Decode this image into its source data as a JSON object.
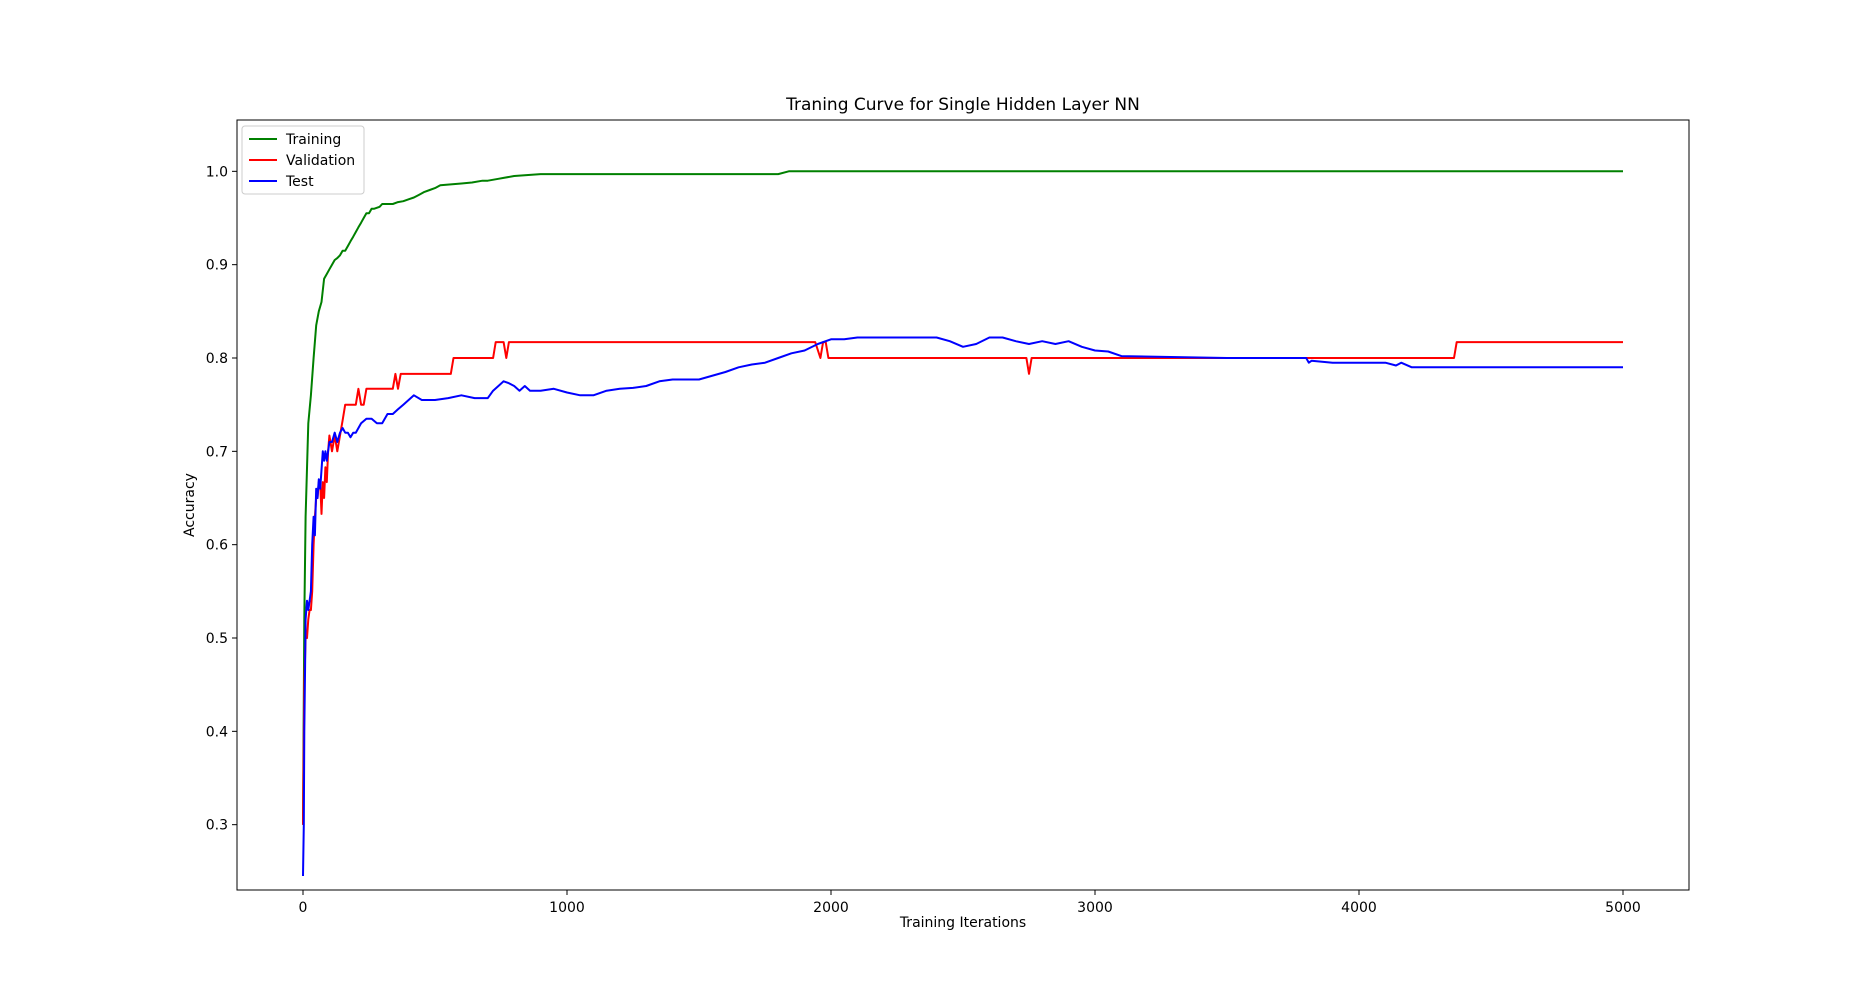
{
  "chart_data": {
    "type": "line",
    "title": "Traning Curve for Single Hidden Layer NN",
    "xlabel": "Training Iterations",
    "ylabel": "Accuracy",
    "xlim": [
      -250,
      5250
    ],
    "ylim": [
      0.23,
      1.055
    ],
    "xticks": [
      0,
      1000,
      2000,
      3000,
      4000,
      5000
    ],
    "xtick_labels": [
      "0",
      "1000",
      "2000",
      "3000",
      "4000",
      "5000"
    ],
    "yticks": [
      0.3,
      0.4,
      0.5,
      0.6,
      0.7,
      0.8,
      0.9,
      1.0
    ],
    "ytick_labels": [
      "0.3",
      "0.4",
      "0.5",
      "0.6",
      "0.7",
      "0.8",
      "0.9",
      "1.0"
    ],
    "grid": false,
    "legend_position": "upper-left",
    "series": [
      {
        "name": "Training",
        "color": "#008000",
        "x": [
          0,
          5,
          10,
          20,
          30,
          40,
          50,
          60,
          70,
          80,
          90,
          100,
          110,
          120,
          130,
          140,
          150,
          160,
          170,
          180,
          190,
          200,
          210,
          220,
          230,
          240,
          250,
          260,
          270,
          290,
          300,
          320,
          340,
          360,
          380,
          400,
          420,
          440,
          460,
          480,
          500,
          520,
          560,
          600,
          640,
          680,
          700,
          740,
          760,
          800,
          900,
          1000,
          1200,
          1400,
          1600,
          1800,
          1840,
          1900,
          2100,
          2500,
          3000,
          3500,
          4000,
          4500,
          5000
        ],
        "y": [
          0.3,
          0.52,
          0.63,
          0.73,
          0.76,
          0.8,
          0.835,
          0.85,
          0.86,
          0.885,
          0.89,
          0.895,
          0.9,
          0.905,
          0.907,
          0.91,
          0.915,
          0.915,
          0.92,
          0.925,
          0.93,
          0.935,
          0.94,
          0.945,
          0.95,
          0.955,
          0.955,
          0.96,
          0.96,
          0.962,
          0.965,
          0.965,
          0.965,
          0.967,
          0.968,
          0.97,
          0.972,
          0.975,
          0.978,
          0.98,
          0.982,
          0.985,
          0.986,
          0.987,
          0.988,
          0.99,
          0.99,
          0.992,
          0.993,
          0.995,
          0.997,
          0.997,
          0.997,
          0.997,
          0.997,
          0.997,
          1.0,
          1.0,
          1.0,
          1.0,
          1.0,
          1.0,
          1.0,
          1.0,
          1.0
        ]
      },
      {
        "name": "Validation",
        "color": "#ff0000",
        "x": [
          0,
          5,
          10,
          15,
          20,
          25,
          30,
          35,
          40,
          45,
          50,
          55,
          60,
          65,
          70,
          75,
          80,
          85,
          90,
          95,
          100,
          110,
          120,
          130,
          140,
          150,
          160,
          170,
          180,
          200,
          210,
          220,
          230,
          240,
          260,
          300,
          340,
          350,
          360,
          370,
          380,
          400,
          500,
          560,
          570,
          600,
          700,
          720,
          730,
          740,
          750,
          760,
          770,
          780,
          800,
          900,
          1000,
          1500,
          1900,
          1940,
          1960,
          1970,
          1980,
          1990,
          2000,
          2010,
          2100,
          2500,
          2740,
          2750,
          2760,
          2770,
          2800,
          3000,
          3500,
          3800,
          4000,
          4300,
          4360,
          4370,
          4500,
          5000
        ],
        "y": [
          0.3,
          0.45,
          0.5,
          0.5,
          0.52,
          0.53,
          0.53,
          0.55,
          0.6,
          0.63,
          0.65,
          0.65,
          0.667,
          0.667,
          0.633,
          0.667,
          0.65,
          0.683,
          0.667,
          0.7,
          0.717,
          0.7,
          0.717,
          0.7,
          0.717,
          0.733,
          0.75,
          0.75,
          0.75,
          0.75,
          0.767,
          0.75,
          0.75,
          0.767,
          0.767,
          0.767,
          0.767,
          0.783,
          0.767,
          0.783,
          0.783,
          0.783,
          0.783,
          0.783,
          0.8,
          0.8,
          0.8,
          0.8,
          0.817,
          0.817,
          0.817,
          0.817,
          0.8,
          0.817,
          0.817,
          0.817,
          0.817,
          0.817,
          0.817,
          0.817,
          0.8,
          0.817,
          0.817,
          0.8,
          0.8,
          0.8,
          0.8,
          0.8,
          0.8,
          0.783,
          0.8,
          0.8,
          0.8,
          0.8,
          0.8,
          0.8,
          0.8,
          0.8,
          0.8,
          0.817,
          0.817,
          0.817
        ]
      },
      {
        "name": "Test",
        "color": "#0000ff",
        "x": [
          0,
          3,
          5,
          8,
          10,
          15,
          20,
          25,
          30,
          35,
          40,
          45,
          50,
          55,
          60,
          65,
          70,
          75,
          80,
          85,
          90,
          100,
          110,
          120,
          130,
          140,
          150,
          160,
          170,
          180,
          190,
          200,
          220,
          240,
          260,
          280,
          300,
          320,
          340,
          360,
          380,
          400,
          420,
          450,
          500,
          550,
          600,
          650,
          700,
          720,
          740,
          760,
          780,
          800,
          820,
          840,
          860,
          880,
          900,
          950,
          1000,
          1050,
          1100,
          1150,
          1200,
          1250,
          1300,
          1350,
          1400,
          1500,
          1600,
          1650,
          1700,
          1750,
          1800,
          1850,
          1900,
          1950,
          2000,
          2050,
          2100,
          2200,
          2300,
          2400,
          2450,
          2500,
          2550,
          2600,
          2650,
          2700,
          2750,
          2800,
          2850,
          2900,
          2950,
          3000,
          3050,
          3100,
          3500,
          3800,
          3810,
          3820,
          3900,
          4000,
          4100,
          4140,
          4160,
          4200,
          4300,
          4500,
          5000
        ],
        "y": [
          0.245,
          0.3,
          0.4,
          0.47,
          0.52,
          0.54,
          0.53,
          0.54,
          0.55,
          0.6,
          0.63,
          0.61,
          0.66,
          0.65,
          0.67,
          0.66,
          0.68,
          0.7,
          0.69,
          0.7,
          0.69,
          0.71,
          0.71,
          0.72,
          0.71,
          0.72,
          0.725,
          0.72,
          0.72,
          0.715,
          0.72,
          0.72,
          0.73,
          0.735,
          0.735,
          0.73,
          0.73,
          0.74,
          0.74,
          0.745,
          0.75,
          0.755,
          0.76,
          0.755,
          0.755,
          0.757,
          0.76,
          0.757,
          0.757,
          0.765,
          0.77,
          0.775,
          0.773,
          0.77,
          0.765,
          0.77,
          0.765,
          0.765,
          0.765,
          0.767,
          0.763,
          0.76,
          0.76,
          0.765,
          0.767,
          0.768,
          0.77,
          0.775,
          0.777,
          0.777,
          0.785,
          0.79,
          0.793,
          0.795,
          0.8,
          0.805,
          0.808,
          0.815,
          0.82,
          0.82,
          0.822,
          0.822,
          0.822,
          0.822,
          0.818,
          0.812,
          0.815,
          0.822,
          0.822,
          0.818,
          0.815,
          0.818,
          0.815,
          0.818,
          0.812,
          0.808,
          0.807,
          0.802,
          0.8,
          0.8,
          0.795,
          0.797,
          0.795,
          0.795,
          0.795,
          0.792,
          0.795,
          0.79,
          0.79,
          0.79,
          0.79
        ]
      }
    ]
  }
}
